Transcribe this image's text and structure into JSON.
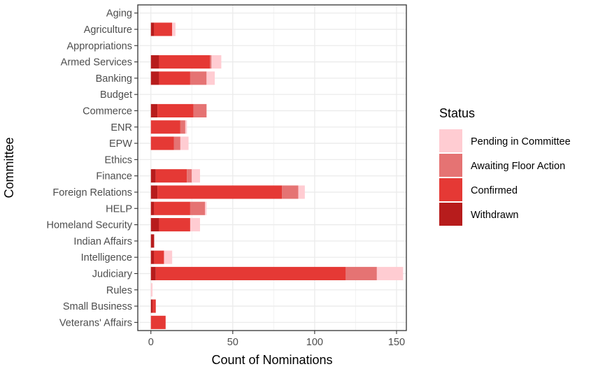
{
  "chart_data": {
    "type": "bar",
    "orientation": "horizontal",
    "stacked": true,
    "xlabel": "Count of Nominations",
    "ylabel": "Committee",
    "xlim": [
      -8,
      156
    ],
    "xticks": [
      0,
      50,
      100,
      150
    ],
    "grid": true,
    "legend": {
      "title": "Status",
      "position": "right",
      "entries": [
        {
          "label": "Pending in Committee",
          "color": "#FFCCD2"
        },
        {
          "label": "Awaiting Floor Action",
          "color": "#E57373"
        },
        {
          "label": "Confirmed",
          "color": "#E53935"
        },
        {
          "label": "Withdrawn",
          "color": "#B71C1C"
        }
      ]
    },
    "categories": [
      "Aging",
      "Agriculture",
      "Appropriations",
      "Armed Services",
      "Banking",
      "Budget",
      "Commerce",
      "ENR",
      "EPW",
      "Ethics",
      "Finance",
      "Foreign Relations",
      "HELP",
      "Homeland Security",
      "Indian Affairs",
      "Intelligence",
      "Judiciary",
      "Rules",
      "Small Business",
      "Veterans' Affairs"
    ],
    "series": [
      {
        "name": "Withdrawn",
        "color": "#B71C1C",
        "values": [
          0,
          2,
          0,
          5,
          5,
          0,
          4,
          0,
          0,
          0,
          3,
          4,
          2,
          5,
          2,
          2,
          3,
          0,
          1,
          0
        ]
      },
      {
        "name": "Confirmed",
        "color": "#E53935",
        "values": [
          0,
          11,
          0,
          31,
          19,
          0,
          22,
          18,
          14,
          0,
          19,
          76,
          22,
          19,
          0,
          6,
          116,
          0,
          2,
          9
        ]
      },
      {
        "name": "Awaiting Floor Action",
        "color": "#E57373",
        "values": [
          0,
          0,
          0,
          1,
          10,
          0,
          8,
          3,
          4,
          0,
          3,
          10,
          9,
          0,
          0,
          0,
          19,
          0,
          0,
          0
        ]
      },
      {
        "name": "Pending in Committee",
        "color": "#FFCCD2",
        "values": [
          0,
          2,
          0,
          6,
          5,
          0,
          0,
          1,
          5,
          0,
          5,
          4,
          1,
          6,
          0,
          5,
          16,
          1,
          0,
          0
        ]
      }
    ]
  }
}
